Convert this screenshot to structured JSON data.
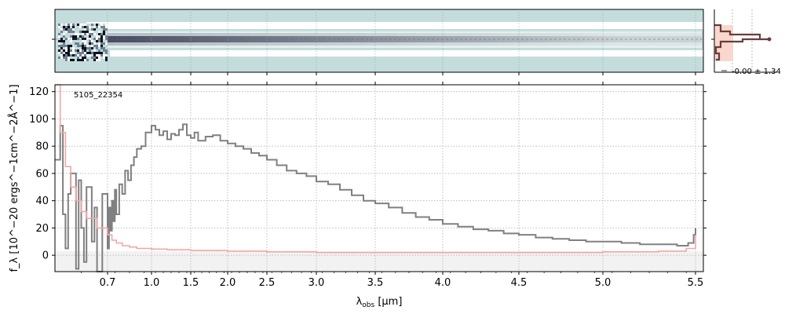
{
  "chart_data": [
    {
      "type": "heatmap",
      "panel": "2d-spectrum",
      "description_colors": {
        "background": "#c5dcdc",
        "trace": "#2b2f45",
        "mask": "#ffffff"
      }
    },
    {
      "type": "line",
      "panel": "1d-spectrum",
      "annotation": "5105_22354",
      "xlabel_main": "λ",
      "xlabel_sub": "obs",
      "xlabel_unit": " [μm]",
      "ylabel": "f_λ [10^−20 ergs^−1cm^−2Å^−1]",
      "xlim": [
        0.6,
        5.52
      ],
      "ylim": [
        -12,
        125
      ],
      "xticks": [
        0.7,
        1.0,
        1.5,
        2.0,
        2.5,
        3.0,
        3.5,
        4.0,
        4.5,
        5.0,
        5.5
      ],
      "xtick_labels": [
        "0.7",
        "1.0",
        "1.5",
        "2.0",
        "2.5",
        "3.0",
        "3.5",
        "4.0",
        "4.5",
        "5.0",
        "5.5"
      ],
      "yticks": [
        0,
        20,
        40,
        60,
        80,
        100,
        120
      ],
      "grid": true,
      "series": [
        {
          "color": "#808080",
          "points": [
            [
              0.6,
              70
            ],
            [
              0.61,
              95
            ],
            [
              0.615,
              30
            ],
            [
              0.62,
              5
            ],
            [
              0.625,
              45
            ],
            [
              0.63,
              60
            ],
            [
              0.64,
              -10
            ],
            [
              0.645,
              55
            ],
            [
              0.65,
              20
            ],
            [
              0.655,
              -5
            ],
            [
              0.66,
              50
            ],
            [
              0.67,
              10
            ],
            [
              0.675,
              35
            ],
            [
              0.68,
              -15
            ],
            [
              0.69,
              45
            ],
            [
              0.7,
              5
            ],
            [
              0.71,
              35
            ],
            [
              0.72,
              18
            ],
            [
              0.73,
              40
            ],
            [
              0.74,
              25
            ],
            [
              0.75,
              48
            ],
            [
              0.76,
              30
            ],
            [
              0.78,
              52
            ],
            [
              0.8,
              45
            ],
            [
              0.82,
              62
            ],
            [
              0.84,
              55
            ],
            [
              0.86,
              66
            ],
            [
              0.88,
              72
            ],
            [
              0.9,
              78
            ],
            [
              0.93,
              80
            ],
            [
              0.96,
              90
            ],
            [
              1.0,
              95
            ],
            [
              1.05,
              92
            ],
            [
              1.1,
              88
            ],
            [
              1.15,
              91
            ],
            [
              1.2,
              85
            ],
            [
              1.25,
              89
            ],
            [
              1.3,
              88
            ],
            [
              1.35,
              92
            ],
            [
              1.4,
              96
            ],
            [
              1.45,
              88
            ],
            [
              1.5,
              86
            ],
            [
              1.55,
              90
            ],
            [
              1.6,
              84
            ],
            [
              1.7,
              87
            ],
            [
              1.8,
              88
            ],
            [
              1.9,
              84
            ],
            [
              2.0,
              82
            ],
            [
              2.1,
              80
            ],
            [
              2.2,
              78
            ],
            [
              2.3,
              75
            ],
            [
              2.4,
              73
            ],
            [
              2.5,
              70
            ],
            [
              2.6,
              66
            ],
            [
              2.7,
              62
            ],
            [
              2.8,
              60
            ],
            [
              2.9,
              58
            ],
            [
              3.0,
              54
            ],
            [
              3.1,
              52
            ],
            [
              3.2,
              48
            ],
            [
              3.3,
              44
            ],
            [
              3.4,
              40
            ],
            [
              3.5,
              38
            ],
            [
              3.6,
              35
            ],
            [
              3.7,
              31
            ],
            [
              3.8,
              28
            ],
            [
              3.9,
              26
            ],
            [
              4.0,
              23
            ],
            [
              4.1,
              21
            ],
            [
              4.2,
              19
            ],
            [
              4.3,
              18
            ],
            [
              4.4,
              16
            ],
            [
              4.5,
              15
            ],
            [
              4.6,
              13
            ],
            [
              4.7,
              12
            ],
            [
              4.8,
              11
            ],
            [
              4.9,
              10
            ],
            [
              5.0,
              10
            ],
            [
              5.1,
              9
            ],
            [
              5.2,
              8
            ],
            [
              5.3,
              8
            ],
            [
              5.4,
              7
            ],
            [
              5.46,
              9
            ],
            [
              5.49,
              15
            ],
            [
              5.5,
              20
            ]
          ]
        },
        {
          "color": "#f4a6a6",
          "points": [
            [
              0.6,
              125
            ],
            [
              0.61,
              90
            ],
            [
              0.62,
              65
            ],
            [
              0.63,
              50
            ],
            [
              0.64,
              40
            ],
            [
              0.65,
              32
            ],
            [
              0.66,
              27
            ],
            [
              0.68,
              20
            ],
            [
              0.7,
              15
            ],
            [
              0.73,
              11
            ],
            [
              0.76,
              9
            ],
            [
              0.8,
              7
            ],
            [
              0.85,
              6
            ],
            [
              0.9,
              5
            ],
            [
              1.0,
              4.5
            ],
            [
              1.2,
              4
            ],
            [
              1.5,
              3.5
            ],
            [
              2.0,
              3
            ],
            [
              2.5,
              2.5
            ],
            [
              3.0,
              2
            ],
            [
              3.5,
              2
            ],
            [
              4.0,
              2
            ],
            [
              4.5,
              2
            ],
            [
              5.0,
              2.5
            ],
            [
              5.3,
              3
            ],
            [
              5.45,
              5
            ],
            [
              5.5,
              15
            ]
          ]
        }
      ]
    },
    {
      "type": "histogram",
      "panel": "residual-histogram",
      "label": "-0.00 ± 1.34",
      "fill_color": "#f9d7cd",
      "line_color": "#6b3c3c"
    }
  ]
}
